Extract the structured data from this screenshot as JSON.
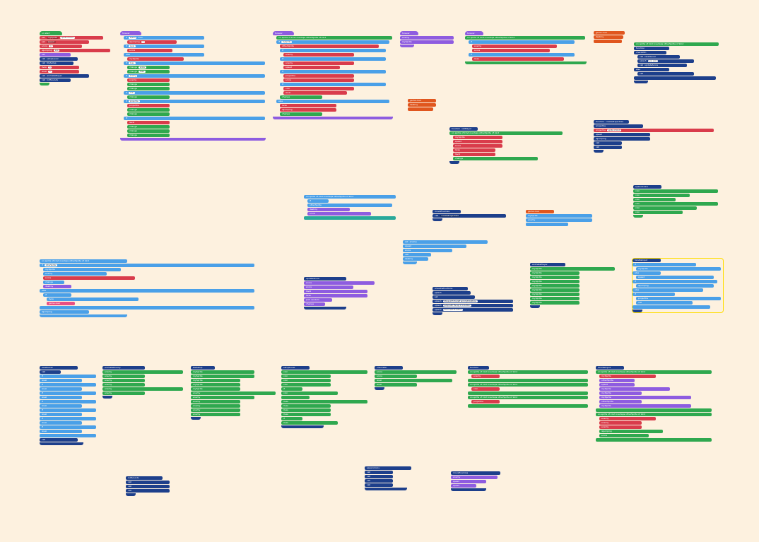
{
  "editor": {
    "background": "#fdf1df",
    "selected_stack_outline": "#ffdc00"
  },
  "palette": {
    "event": "#e14a4a",
    "green": "#2fa84f",
    "function": "#1d3f8b",
    "logic": "#4aa0e8",
    "sprite": "#8e5ce0",
    "variable": "#d93c4b",
    "game": "#e0561e",
    "text": "#e94f84"
  },
  "labels": {
    "on_start": "on start",
    "forever": "forever",
    "set": "set",
    "to": "to",
    "sprite_of_kind": "sprite of kind",
    "call": "call",
    "if": "if",
    "then": "then",
    "else": "else",
    "change": "change",
    "by": "by",
    "function": "function",
    "on_overlaps": "on sprite of kind overlaps otherSprite of kind",
    "destroy": "destroy",
    "game_over": "game over",
    "splash": "splash",
    "random": "pick random"
  },
  "functions": {
    "setPlayer": "setPlayer",
    "setupLevel": "setupLevel",
    "moveEnemies": "moveEnemies",
    "checkWin": "checkWin",
    "showInstructions": "showInstructions",
    "createProjectiles": "createProjectiles",
    "updateScore": "updateScore",
    "spawnCoins": "spawnCoins",
    "animatePlayer": "animatePlayer",
    "animateEnemy": "animateEnemy",
    "resetLevel": "resetLevel",
    "handleInput": "handleInput",
    "tileSetup": "tileSetup",
    "initSounds": "initSounds"
  },
  "variables": {
    "mySprite": "mySprite",
    "enemy": "enemy",
    "otherSprite": "otherSprite",
    "projectile": "projectile",
    "score": "score",
    "level": "level",
    "lives": "lives",
    "speed": "speed",
    "isJumping": "isJumping",
    "coin": "coin"
  },
  "texts": {
    "instructions_1": "Move with the left and right buttons",
    "instructions_2": "Jump with the up or A button",
    "instructions_3": "Shoot with B button",
    "you_win": "you win!",
    "game_over_text": "Game over"
  },
  "numbers": {
    "zero": "0",
    "one": "1",
    "two": "2",
    "three": "3",
    "five": "5",
    "ten": "10",
    "hundred": "100",
    "neg_hundred": "-100",
    "two_hundred": "200"
  }
}
